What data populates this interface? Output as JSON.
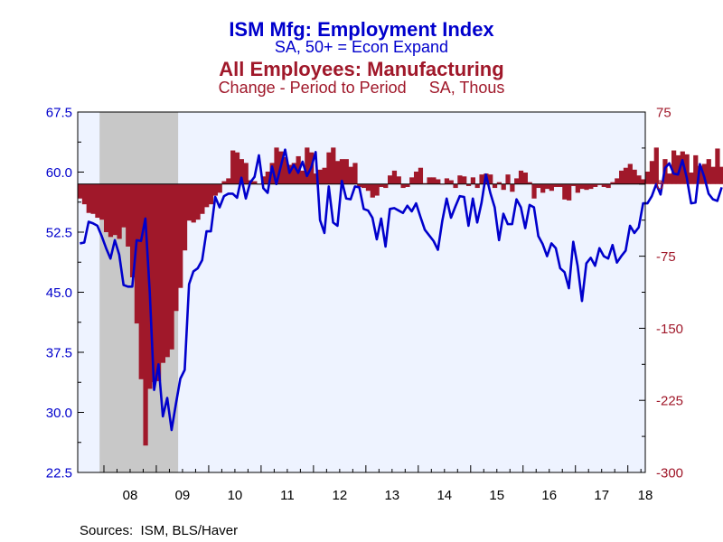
{
  "chart_data": {
    "type": "line+bar",
    "titles": {
      "line_title": "ISM Mfg: Employment Index",
      "line_subtitle": "SA, 50+ = Econ Expand",
      "bar_title": "All Employees: Manufacturing",
      "bar_subtitle": "Change - Period to Period     SA, Thous"
    },
    "colors": {
      "line": "#0000cc",
      "bars": "#a0182a",
      "left_axis_text": "#0000cc",
      "right_axis_text": "#a0182a",
      "plot_background": "#eef3ff",
      "recession_shade": "#c8c8c8"
    },
    "x_axis": {
      "start": 2007.5,
      "end": 2018.333,
      "ticks": [
        "08",
        "09",
        "10",
        "11",
        "12",
        "13",
        "14",
        "15",
        "16",
        "17",
        "18"
      ]
    },
    "left_axis": {
      "min": 22.5,
      "max": 67.5,
      "ticks": [
        "67.5",
        "60.0",
        "52.5",
        "45.0",
        "37.5",
        "30.0",
        "22.5"
      ]
    },
    "right_axis": {
      "min": -300,
      "max": 75,
      "ticks": [
        "75",
        "0",
        "-75",
        "-150",
        "-225",
        "-300"
      ]
    },
    "recession": {
      "start": 2007.917,
      "end": 2009.417
    },
    "series": [
      {
        "name": "ISM Mfg: Employment Index",
        "axis": "left",
        "type": "line",
        "start": 2007.5,
        "step_months": 1,
        "values": [
          51.1,
          51.2,
          53.8,
          53.6,
          53.3,
          52.0,
          50.5,
          49.2,
          51.5,
          49.7,
          45.9,
          45.7,
          45.7,
          51.5,
          51.4,
          54.2,
          45.0,
          32.8,
          36.0,
          29.5,
          31.8,
          27.8,
          31.1,
          34.2,
          35.3,
          46.0,
          47.6,
          48.0,
          49.0,
          52.6,
          52.6,
          56.9,
          55.6,
          57.0,
          57.3,
          57.3,
          56.8,
          59.3,
          56.7,
          58.7,
          59.4,
          62.1,
          58.0,
          57.4,
          60.7,
          58.5,
          60.7,
          62.8,
          59.9,
          60.9,
          59.9,
          61.3,
          59.5,
          60.6,
          62.5,
          54.0,
          52.4,
          58.2,
          53.7,
          53.3,
          58.9,
          56.7,
          56.6,
          58.2,
          58.1,
          55.4,
          55.2,
          54.3,
          51.6,
          54.2,
          50.7,
          55.4,
          55.5,
          55.2,
          54.9,
          55.8,
          55.1,
          56.1,
          54.4,
          52.8,
          52.1,
          51.4,
          50.3,
          53.9,
          56.7,
          54.3,
          55.7,
          57.0,
          56.9,
          53.3,
          56.7,
          53.7,
          56.2,
          59.7,
          57.4,
          55.6,
          51.5,
          54.8,
          53.5,
          53.5,
          56.6,
          55.6,
          53.0,
          55.9,
          55.6,
          52.0,
          51.0,
          49.5,
          51.1,
          50.5,
          48.0,
          47.5,
          45.5,
          51.3,
          48.3,
          43.9,
          48.6,
          49.3,
          48.3,
          50.5,
          49.5,
          49.2,
          50.9,
          48.7,
          49.5,
          50.2,
          53.3,
          52.4,
          53.1,
          56.1,
          56.1,
          57.0,
          58.5,
          57.2,
          60.5,
          61.1,
          59.8,
          59.7,
          61.5,
          59.3,
          56.1,
          56.2,
          61.0,
          59.4,
          57.3,
          56.6,
          56.4,
          58.1
        ]
      },
      {
        "name": "All Employees: Manufacturing",
        "axis": "right",
        "type": "bar",
        "start": 2007.5,
        "step_months": 1,
        "values": [
          -15,
          -21,
          -30,
          -31,
          -35,
          -37,
          -50,
          -55,
          -53,
          -57,
          -45,
          -65,
          -97,
          -145,
          -203,
          -272,
          -213,
          -206,
          -205,
          -186,
          -180,
          -172,
          -132,
          -108,
          -69,
          -38,
          -40,
          -37,
          -31,
          -24,
          -21,
          -12,
          -9,
          3,
          6,
          35,
          33,
          26,
          22,
          4,
          3,
          0,
          8,
          13,
          22,
          38,
          34,
          28,
          20,
          22,
          29,
          14,
          38,
          33,
          11,
          15,
          17,
          33,
          38,
          24,
          26,
          26,
          18,
          22,
          -3,
          -4,
          -7,
          -14,
          -12,
          -3,
          -4,
          9,
          14,
          8,
          -4,
          -3,
          7,
          13,
          17,
          1,
          7,
          7,
          5,
          0,
          6,
          4,
          -4,
          9,
          8,
          -2,
          7,
          -4,
          10,
          11,
          10,
          -4,
          2,
          -6,
          10,
          -8,
          6,
          14,
          12,
          2,
          -15,
          -4,
          -9,
          -5,
          -7,
          -3,
          -3,
          -16,
          -17,
          -2,
          -9,
          -5,
          -6,
          -5,
          -3,
          -1,
          -3,
          -4,
          2,
          6,
          14,
          17,
          21,
          15,
          9,
          5,
          13,
          24,
          38,
          2,
          26,
          11,
          35,
          30,
          34,
          31,
          12,
          30,
          19,
          21,
          26,
          18,
          37,
          18
        ]
      }
    ]
  },
  "footer": {
    "sources": "Sources:  ISM, BLS/Haver"
  }
}
